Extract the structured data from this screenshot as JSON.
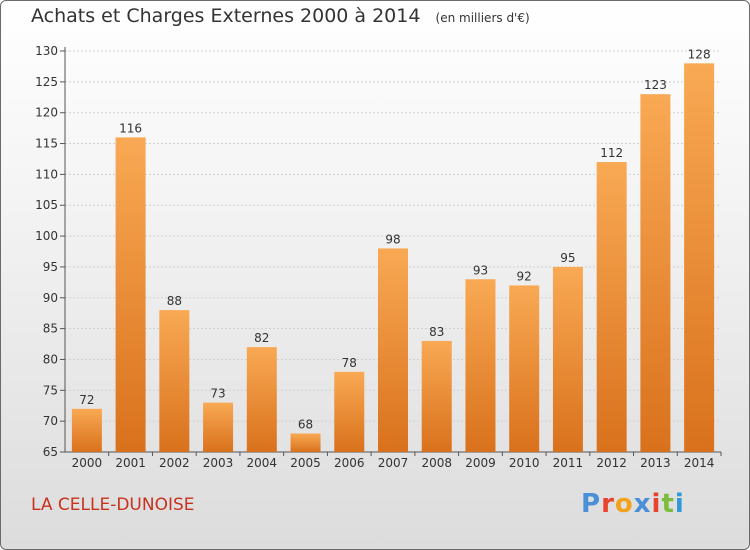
{
  "header": {
    "title": "Achats et Charges Externes 2000 à 2014",
    "unit": "(en milliers d'€)"
  },
  "footer": {
    "place": "LA CELLE-DUNOISE",
    "logo": "Proxiti",
    "logo_colors": [
      "#4a8fd8",
      "#e8432e",
      "#f2a31b",
      "#4a8fd8",
      "#e8432e",
      "#7dbb3c",
      "#2e9ad8"
    ]
  },
  "colors": {
    "bar_light": "#f9a954",
    "bar_dark": "#d9711c",
    "place_text": "#c8321e"
  },
  "chart_data": {
    "type": "bar",
    "title": "Achats et Charges Externes 2000 à 2014",
    "subtitle": "(en milliers d'€)",
    "xlabel": "",
    "ylabel": "",
    "categories": [
      "2000",
      "2001",
      "2002",
      "2003",
      "2004",
      "2005",
      "2006",
      "2007",
      "2008",
      "2009",
      "2010",
      "2011",
      "2012",
      "2013",
      "2014"
    ],
    "values": [
      72,
      116,
      88,
      73,
      82,
      68,
      78,
      98,
      83,
      93,
      92,
      95,
      112,
      123,
      128
    ],
    "ylim": [
      65,
      130
    ],
    "yticks": [
      65,
      70,
      75,
      80,
      85,
      90,
      95,
      100,
      105,
      110,
      115,
      120,
      125,
      130
    ],
    "grid": true,
    "data_labels": true
  }
}
